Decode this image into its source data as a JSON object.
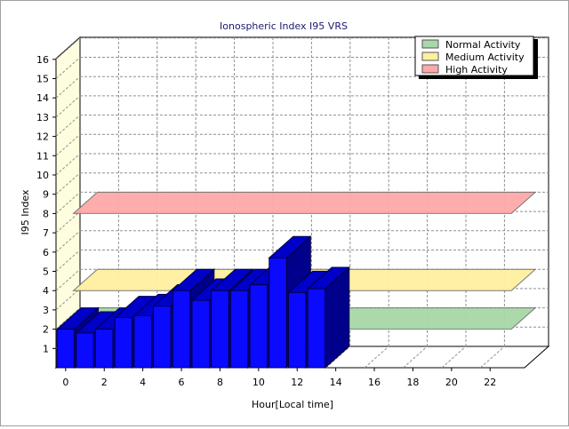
{
  "chart_data": {
    "type": "bar",
    "title": "Ionospheric Index I95 VRS",
    "xlabel": "Hour[Local time]",
    "ylabel": "I95 Index",
    "ylim": [
      0,
      16
    ],
    "xlim": [
      0,
      24
    ],
    "x_ticks": [
      "0",
      "2",
      "4",
      "6",
      "8",
      "10",
      "12",
      "14",
      "16",
      "18",
      "20",
      "22"
    ],
    "y_ticks": [
      "1",
      "2",
      "3",
      "4",
      "5",
      "6",
      "7",
      "8",
      "9",
      "10",
      "11",
      "12",
      "13",
      "14",
      "15",
      "16"
    ],
    "grid": true,
    "legend_position": "top-right",
    "x": [
      0,
      1,
      2,
      3,
      4,
      5,
      6,
      7,
      8,
      9,
      10,
      11,
      12,
      13
    ],
    "values": [
      2.0,
      1.8,
      2.0,
      2.6,
      2.7,
      3.2,
      4.0,
      3.5,
      4.0,
      4.0,
      4.3,
      5.7,
      3.9,
      4.1
    ],
    "bar_color": "#0a0aff",
    "bands": [
      {
        "name": "Normal Activity",
        "value": 2.0,
        "color": "#a8d8a8"
      },
      {
        "name": "Medium Activity",
        "value": 4.0,
        "color": "#fff0a0"
      },
      {
        "name": "High Activity",
        "value": 8.0,
        "color": "#ffa8a8"
      }
    ]
  }
}
